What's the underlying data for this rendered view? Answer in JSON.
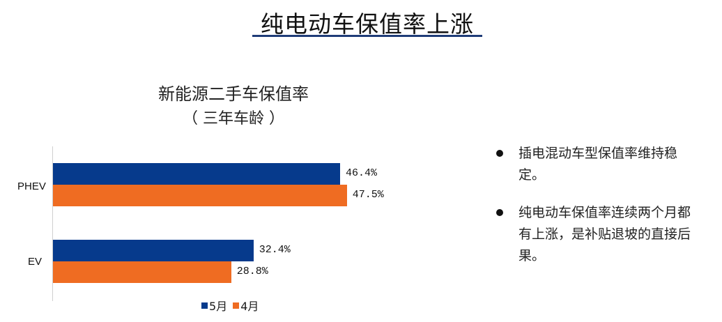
{
  "page": {
    "title": "纯电动车保值率上涨",
    "title_rule_color": "#1f3c78"
  },
  "chart_data": {
    "type": "bar",
    "orientation": "horizontal",
    "title": "新能源二手车保值率",
    "subtitle": "（ 三年车龄 ）",
    "categories": [
      "PHEV",
      "EV"
    ],
    "series": [
      {
        "name": "5月",
        "color": "#063a8c",
        "values": [
          46.4,
          32.4
        ],
        "labels": [
          "46.4%",
          "32.4%"
        ]
      },
      {
        "name": "4月",
        "color": "#ef6c22",
        "values": [
          47.5,
          28.8
        ],
        "labels": [
          "47.5%",
          "28.8%"
        ]
      }
    ],
    "xlabel": "",
    "ylabel": "",
    "grid": false,
    "legend_position": "bottom"
  },
  "bullets": [
    {
      "text": "插电混动车型保值率维持稳定。"
    },
    {
      "text": "纯电动车保值率连续两个月都有上涨，是补贴退坡的直接后果。"
    }
  ]
}
